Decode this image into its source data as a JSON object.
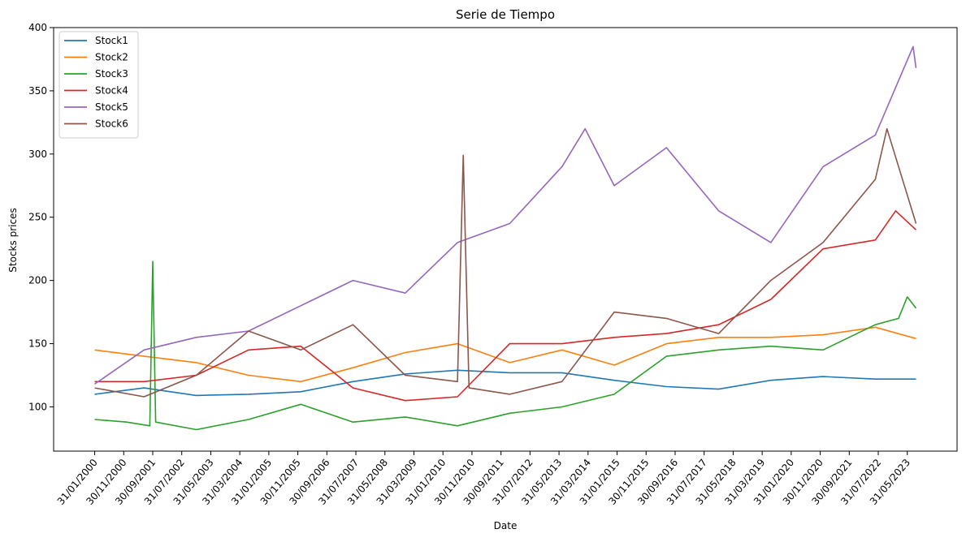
{
  "chart_data": {
    "type": "line",
    "title": "Serie de Tiempo",
    "xlabel": "Date",
    "ylabel": "Stocks prices",
    "ylim": [
      65,
      400
    ],
    "yticks": [
      100,
      150,
      200,
      250,
      300,
      350,
      400
    ],
    "ytick_labels": [
      "100",
      "150",
      "200",
      "250",
      "300",
      "350",
      "400"
    ],
    "xticks": [
      "31/01/2000",
      "30/11/2000",
      "30/09/2001",
      "31/07/2002",
      "31/05/2003",
      "31/03/2004",
      "31/01/2005",
      "30/11/2005",
      "30/09/2006",
      "31/07/2007",
      "31/05/2008",
      "31/03/2009",
      "31/01/2010",
      "30/11/2010",
      "30/09/2011",
      "31/07/2012",
      "31/05/2013",
      "31/03/2014",
      "31/01/2015",
      "30/11/2015",
      "30/09/2016",
      "31/07/2017",
      "31/05/2018",
      "31/03/2019",
      "31/01/2020",
      "30/11/2020",
      "30/09/2021",
      "31/07/2022",
      "31/05/2023"
    ],
    "x_range": [
      "31/01/2000",
      "31/08/2023"
    ],
    "legend_position": "upper left",
    "grid": false,
    "series": [
      {
        "name": "Stock1",
        "color": "#1f77b4",
        "x": [
          "31/01/2000",
          "30/06/2001",
          "31/12/2002",
          "30/06/2004",
          "31/12/2005",
          "30/06/2007",
          "31/12/2008",
          "30/06/2010",
          "31/12/2011",
          "30/06/2013",
          "31/12/2014",
          "30/06/2016",
          "31/12/2017",
          "30/06/2019",
          "31/12/2020",
          "30/06/2022",
          "31/08/2023"
        ],
        "y": [
          110,
          115,
          109,
          110,
          112,
          120,
          126,
          129,
          127,
          127,
          121,
          116,
          114,
          121,
          124,
          122,
          122
        ]
      },
      {
        "name": "Stock2",
        "color": "#ff7f0e",
        "x": [
          "31/01/2000",
          "30/06/2001",
          "31/12/2002",
          "30/06/2004",
          "31/12/2005",
          "30/06/2007",
          "31/12/2008",
          "30/06/2010",
          "31/12/2011",
          "30/06/2013",
          "31/12/2014",
          "30/06/2016",
          "31/12/2017",
          "30/06/2019",
          "31/12/2020",
          "30/06/2022",
          "31/08/2023"
        ],
        "y": [
          145,
          140,
          135,
          125,
          120,
          131,
          143,
          150,
          135,
          145,
          133,
          150,
          155,
          155,
          157,
          163,
          154
        ]
      },
      {
        "name": "Stock3",
        "color": "#2ca02c",
        "x": [
          "31/01/2000",
          "31/12/2000",
          "31/08/2001",
          "30/09/2001",
          "31/10/2001",
          "31/12/2002",
          "30/06/2004",
          "31/12/2005",
          "30/06/2007",
          "31/12/2008",
          "30/06/2010",
          "31/12/2011",
          "30/06/2013",
          "31/12/2014",
          "30/06/2016",
          "31/12/2017",
          "30/06/2019",
          "31/12/2020",
          "30/06/2022",
          "28/02/2023",
          "31/05/2023",
          "31/08/2023"
        ],
        "y": [
          90,
          88,
          85,
          215,
          88,
          82,
          90,
          102,
          88,
          92,
          85,
          95,
          100,
          110,
          140,
          145,
          148,
          145,
          165,
          170,
          187,
          178
        ]
      },
      {
        "name": "Stock4",
        "color": "#d62728",
        "x": [
          "31/01/2000",
          "30/06/2001",
          "31/12/2002",
          "30/06/2004",
          "31/12/2005",
          "30/06/2007",
          "31/12/2008",
          "30/06/2010",
          "31/12/2011",
          "30/06/2013",
          "31/12/2014",
          "30/06/2016",
          "31/12/2017",
          "30/06/2019",
          "31/12/2020",
          "30/06/2022",
          "31/01/2023",
          "31/08/2023"
        ],
        "y": [
          120,
          120,
          125,
          145,
          148,
          115,
          105,
          108,
          150,
          150,
          155,
          158,
          165,
          185,
          225,
          232,
          255,
          240
        ]
      },
      {
        "name": "Stock5",
        "color": "#9467bd",
        "x": [
          "31/01/2000",
          "30/06/2001",
          "31/12/2002",
          "30/06/2004",
          "31/12/2005",
          "30/06/2007",
          "31/12/2008",
          "30/06/2010",
          "31/12/2011",
          "30/06/2013",
          "28/02/2014",
          "31/12/2014",
          "30/06/2016",
          "31/12/2017",
          "30/06/2019",
          "31/12/2020",
          "30/06/2022",
          "31/07/2023",
          "31/08/2023"
        ],
        "y": [
          118,
          145,
          155,
          160,
          180,
          200,
          190,
          230,
          245,
          290,
          320,
          275,
          305,
          255,
          230,
          290,
          315,
          385,
          368
        ]
      },
      {
        "name": "Stock6",
        "color": "#8c564b",
        "x": [
          "31/01/2000",
          "30/06/2001",
          "31/12/2002",
          "30/06/2004",
          "31/12/2005",
          "30/06/2007",
          "31/12/2008",
          "30/06/2010",
          "31/08/2010",
          "31/10/2010",
          "31/12/2011",
          "30/06/2013",
          "31/12/2014",
          "30/06/2016",
          "31/12/2017",
          "30/06/2019",
          "31/12/2020",
          "30/06/2022",
          "31/10/2022",
          "31/08/2023"
        ],
        "y": [
          115,
          108,
          125,
          160,
          145,
          165,
          125,
          120,
          299,
          115,
          110,
          120,
          175,
          170,
          158,
          200,
          230,
          280,
          320,
          245
        ]
      }
    ]
  }
}
